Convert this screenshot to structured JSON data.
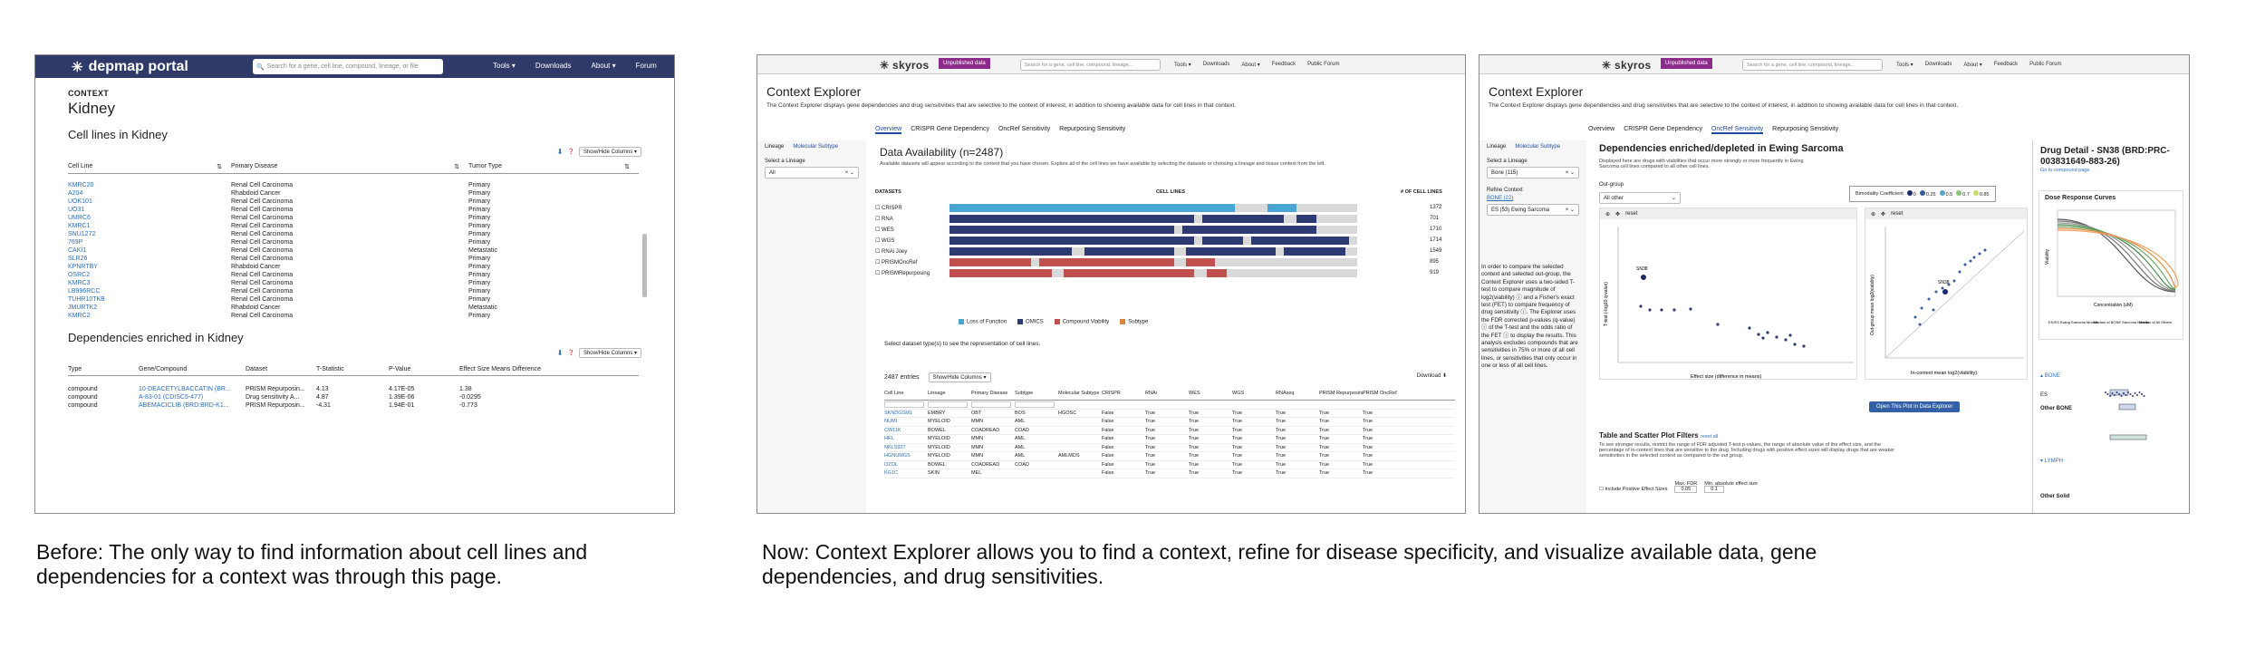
{
  "panel1": {
    "logo": "depmap portal",
    "search_placeholder": "Search for a gene, cell line, compound, lineage, or file",
    "nav": [
      "Tools ▾",
      "Downloads",
      "About ▾",
      "Forum"
    ],
    "context_label": "CONTEXT",
    "title": "Kidney",
    "cell_lines_heading": "Cell lines in Kidney",
    "show_hide": "Show/Hide Columns ▾",
    "columns": [
      "Cell Line",
      "Primary Disease",
      "Tumor Type"
    ],
    "rows": [
      [
        "KMRC20",
        "Renal Cell Carcinoma",
        "Primary"
      ],
      [
        "A204",
        "Rhabdoid Cancer",
        "Primary"
      ],
      [
        "UOK101",
        "Renal Cell Carcinoma",
        "Primary"
      ],
      [
        "UO31",
        "Renal Cell Carcinoma",
        "Primary"
      ],
      [
        "UMRC6",
        "Renal Cell Carcinoma",
        "Primary"
      ],
      [
        "KMRC1",
        "Renal Cell Carcinoma",
        "Primary"
      ],
      [
        "SNU1272",
        "Renal Cell Carcinoma",
        "Primary"
      ],
      [
        "769P",
        "Renal Cell Carcinoma",
        "Primary"
      ],
      [
        "CAKI1",
        "Renal Cell Carcinoma",
        "Metastatic"
      ],
      [
        "SLR26",
        "Renal Cell Carcinoma",
        "Primary"
      ],
      [
        "KPNRTBY",
        "Rhabdoid Cancer",
        "Primary"
      ],
      [
        "OSRC2",
        "Renal Cell Carcinoma",
        "Primary"
      ],
      [
        "KMRC3",
        "Renal Cell Carcinoma",
        "Primary"
      ],
      [
        "LB996RCC",
        "Renal Cell Carcinoma",
        "Primary"
      ],
      [
        "TUHR10TKB",
        "Renal Cell Carcinoma",
        "Primary"
      ],
      [
        "JMURTK2",
        "Rhabdoid Cancer",
        "Metastatic"
      ],
      [
        "KMRC2",
        "Renal Cell Carcinoma",
        "Primary"
      ]
    ],
    "deps_heading": "Dependencies enriched in Kidney",
    "dep_columns": [
      "Type",
      "Gene/Compound",
      "Dataset",
      "T-Statistic",
      "P-Value",
      "Effect Size Means Difference"
    ],
    "dep_rows": [
      [
        "compound",
        "10-DEACETYLBACCATIN (BR...",
        "PRISM Repurposin...",
        "4.13",
        "4.17E-05",
        "1.38"
      ],
      [
        "compound",
        "A-83-01 (CDISC5-477)",
        "Drug sensitivity A...",
        "4.87",
        "1.39E-06",
        "-0.0295"
      ],
      [
        "compound",
        "ABEMACICLIB (BRD:BRD-K1...",
        "PRISM Repurposin...",
        "-4.31",
        "1.94E-01",
        "-0.773"
      ]
    ]
  },
  "panel2": {
    "logo": "skyros",
    "badge": "Unpublished data",
    "search_placeholder": "Search for a gene, cell line, compound, lineage...",
    "nav": [
      "Tools ▾",
      "Downloads",
      "About ▾",
      "Feedback",
      "Public Forum"
    ],
    "title": "Context Explorer",
    "desc": "The Context Explorer displays gene dependencies and drug sensitivities that are selective to the context of interest, in addition to showing available data for cell lines in that context.",
    "tabs": [
      "Overview",
      "CRISPR Gene Dependency",
      "OncRef Sensitivity",
      "Repurposing Sensitivity"
    ],
    "side_tabs": [
      "Lineage",
      "Molecular Subtype"
    ],
    "select_label": "Select a Lineage",
    "select_value": "All",
    "da_title": "Data Availability (n=2487)",
    "da_desc": "Available datasets will appear according to the context that you have chosen. Explore all of the cell lines we have available by selecting the datasets or choosing a lineage and tissue context from the left.",
    "datasets_label": "DATASETS",
    "cell_lines_label": "CELL LINES",
    "count_label": "# OF CELL LINES",
    "datasets": [
      {
        "name": "CRISPR",
        "count": "1372"
      },
      {
        "name": "RNA",
        "count": "701"
      },
      {
        "name": "WES",
        "count": "1710"
      },
      {
        "name": "WGS",
        "count": "1714"
      },
      {
        "name": "RNAi Joey",
        "count": "1549"
      },
      {
        "name": "PRISMOncRef",
        "count": "895"
      },
      {
        "name": "PRISMRepurposing",
        "count": "919"
      }
    ],
    "legend": [
      "Loss of Function",
      "OMICS",
      "Compound Viability",
      "Subtype"
    ],
    "legend_colors": [
      "#4aa5d3",
      "#2e3b73",
      "#c0504d",
      "#d9843b"
    ],
    "select_note": "Select dataset type(s) to see the representation of cell lines.",
    "entries": "2487 entries",
    "show_hide": "Show/Hide Columns ▾",
    "download": "Download",
    "table_cols": [
      "Cell Line",
      "Lineage",
      "Primary Disease",
      "Subtype",
      "Molecular Subtype",
      "CRISPR",
      "RNAi",
      "WES",
      "WGS",
      "RNAseq",
      "PRISM Repurposing",
      "PRISM OncRef"
    ],
    "table_rows": [
      [
        "SKNDGSM1",
        "EMBRY",
        "OBT",
        "BOS",
        "HGOSC",
        "False",
        "True",
        "True",
        "True",
        "True",
        "True",
        "True"
      ],
      [
        "NUMI",
        "MYELOID",
        "MMN",
        "AML",
        "",
        "False",
        "True",
        "True",
        "True",
        "True",
        "True",
        "True"
      ],
      [
        "CW11K",
        "BOWEL",
        "COADREAD",
        "COAD",
        "",
        "False",
        "True",
        "True",
        "True",
        "True",
        "True",
        "True"
      ],
      [
        "HEL",
        "MYELOID",
        "MMN",
        "AML",
        "",
        "False",
        "True",
        "True",
        "True",
        "True",
        "True",
        "True"
      ],
      [
        "NKLS927",
        "MYELOID",
        "MMN",
        "AML",
        "",
        "False",
        "True",
        "True",
        "True",
        "True",
        "True",
        "True"
      ],
      [
        "HGNUMGS",
        "MYELOID",
        "MMN",
        "AML",
        "AMLMDS",
        "False",
        "True",
        "True",
        "True",
        "True",
        "True",
        "True"
      ],
      [
        "OZOL",
        "BOWEL",
        "COADREAD",
        "COAD",
        "",
        "False",
        "True",
        "True",
        "True",
        "True",
        "True",
        "True"
      ],
      [
        "KG1C",
        "SKIN",
        "MEL",
        "",
        "",
        "False",
        "True",
        "True",
        "True",
        "True",
        "True",
        "True"
      ]
    ]
  },
  "panel3": {
    "logo": "skyros",
    "badge": "Unpublished data",
    "search_placeholder": "Search for a gene, cell line, compound, lineage...",
    "nav": [
      "Tools ▾",
      "Downloads",
      "About ▾",
      "Feedback",
      "Public Forum"
    ],
    "title": "Context Explorer",
    "desc": "The Context Explorer displays gene dependencies and drug sensitivities that are selective to the context of interest, in addition to showing available data for cell lines in that context.",
    "tabs": [
      "Overview",
      "CRISPR Gene Dependency",
      "OncRef Sensitivity",
      "Repurposing Sensitivity"
    ],
    "side_tabs": [
      "Lineage",
      "Molecular Subtype"
    ],
    "select_label": "Select a Lineage",
    "select_value": "Bone (115)",
    "outgroup_label": "Out-group",
    "outgroup_value": "All other",
    "refine_label": "Refine Context",
    "refine_link": "BONE (22)",
    "refine_value": "ES (53) Ewing Sarcoma",
    "info": "In order to compare the selected context and selected out-group, the Context Explorer uses a two-sided T-test to compare magnitude of log2(viability) ⓘ and a Fisher's exact test (FET) to compare frequency of drug sensitivity ⓘ. The Explorer uses the FDR corrected p-values (q-value) ⓘ of the T-test and the odds ratio of the FET ⓘ to display the results. This analysis excludes compounds that are sensitivities in 75% or more of all cell lines, or sensitivities that only occur in one or less of all cell lines.",
    "dep_title": "Dependencies enriched/depleted in Ewing Sarcoma",
    "dep_sub": "Displayed here are drugs with viabilities that occur more strongly or more frequently in Ewing Sarcoma cell lines compared to all other cell lines.",
    "bimod_label": "Bimodality Coefficient",
    "bimod_values": [
      "0",
      "0.25",
      "0.5",
      "0.7",
      "0.85"
    ],
    "left_xlabel": "Effect size (difference in means)",
    "left_ylabel": "T-test (-log10 q-value)",
    "right_xlabel": "In-context mean log2(viability)",
    "right_ylabel": "Out-group mean log2(viability)",
    "point_label": "SN38",
    "reset": "reset",
    "open_btn": "Open This Plot in Data Explorer",
    "filters_title": "Table and Scatter Plot Filters",
    "filters_reset": "reset all",
    "filters_desc": "To see stronger results, restrict the range of FDR adjusted T-test p-values, the range of absolute value of the effect size, and the percentage of in-context lines that are sensitive to the drug. Including drugs with positive effect sizes will display drugs that are weaker sensitivities in the selected context as compared to the out group.",
    "max_fdr": "Max. FDR",
    "max_fdr_val": "0.05",
    "min_effect": "Min. absolute effect size",
    "min_effect_val": "0.1",
    "include_pos": "Include Positive Effect Sizes",
    "drug_title": "Drug Detail - SN38 (BRD:PRC-003831649-883-26)",
    "drug_link": "Go to compound page",
    "drc_title": "Dose Response Curves",
    "drc_xlabel": "Concentration (uM)",
    "drc_ylabel": "Viability",
    "drc_legend": [
      "ES/ES Ewing Sarcoma Models",
      "Median of BONE Sarcoma Models",
      "Median of All Others"
    ],
    "bone_label": "BONE",
    "ews_label": "ES",
    "other_bone": "Other BONE",
    "lymph_label": "LYMPH",
    "other_solid": "Other Solid"
  },
  "captions": {
    "before": "Before: The only way to find information about cell lines and dependencies for a context was through this page.",
    "now": "Now: Context Explorer allows you to find a context, refine for disease specificity, and visualize available data, gene dependencies, and drug sensitivities."
  }
}
